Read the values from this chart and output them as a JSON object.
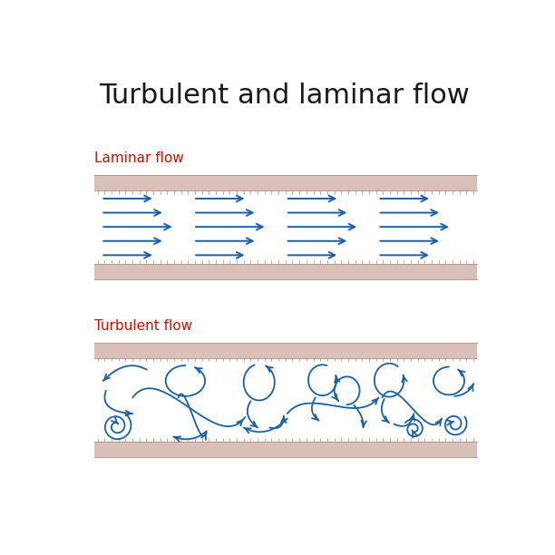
{
  "title": "Turbulent and laminar flow",
  "title_fontsize": 22,
  "title_color": "#1a1a1a",
  "bg_color": "#ffffff",
  "label_laminar": "Laminar flow",
  "label_turbulent": "Turbulent flow",
  "label_color": "#cc1100",
  "label_fontsize": 11,
  "pipe_color": "#d9c0b8",
  "pipe_edge_color": "#b8968c",
  "pipe_inner_color": "#ffffff",
  "arrow_color": "#1a5fa8",
  "arrow_lw": 1.4,
  "tick_color": "#b09088"
}
